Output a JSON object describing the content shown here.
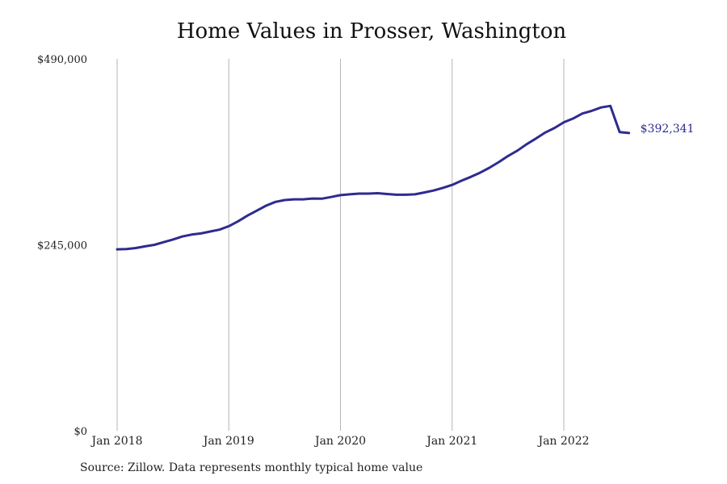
{
  "chart_data": {
    "type": "line",
    "title": "Home Values in Prosser, Washington",
    "source": "Source: Zillow. Data represents monthly typical home value",
    "color": "#2e2b8f",
    "ylim": [
      0,
      490000
    ],
    "y_ticks": [
      {
        "value": 0,
        "label": "$0"
      },
      {
        "value": 245000,
        "label": "$245,000"
      },
      {
        "value": 490000,
        "label": "$490,000"
      }
    ],
    "x_ticks": [
      {
        "value": "2018-01",
        "label": "Jan 2018"
      },
      {
        "value": "2019-01",
        "label": "Jan 2019"
      },
      {
        "value": "2020-01",
        "label": "Jan 2020"
      },
      {
        "value": "2021-01",
        "label": "Jan 2021"
      },
      {
        "value": "2022-01",
        "label": "Jan 2022"
      }
    ],
    "end_label": "$392,341",
    "series": [
      {
        "x": [
          "2018-01",
          "2018-02",
          "2018-03",
          "2018-04",
          "2018-05",
          "2018-06",
          "2018-07",
          "2018-08",
          "2018-09",
          "2018-10",
          "2018-11",
          "2018-12",
          "2019-01",
          "2019-02",
          "2019-03",
          "2019-04",
          "2019-05",
          "2019-06",
          "2019-07",
          "2019-08",
          "2019-09",
          "2019-10",
          "2019-11",
          "2019-12",
          "2020-01",
          "2020-02",
          "2020-03",
          "2020-04",
          "2020-05",
          "2020-06",
          "2020-07",
          "2020-08",
          "2020-09",
          "2020-10",
          "2020-11",
          "2020-12",
          "2021-01",
          "2021-02",
          "2021-03",
          "2021-04",
          "2021-05",
          "2021-06",
          "2021-07",
          "2021-08",
          "2021-09",
          "2021-10",
          "2021-11",
          "2021-12",
          "2022-01",
          "2022-02",
          "2022-03",
          "2022-04",
          "2022-05",
          "2022-06",
          "2022-07",
          "2022-08"
        ],
        "values": [
          239000,
          239500,
          240800,
          243000,
          245000,
          248500,
          252000,
          256000,
          258500,
          260000,
          262500,
          265000,
          269500,
          276000,
          283500,
          290000,
          296500,
          301500,
          304000,
          305000,
          305000,
          306000,
          305800,
          308000,
          310500,
          311500,
          312500,
          312500,
          313000,
          312000,
          311000,
          311000,
          311500,
          314000,
          316500,
          320000,
          324000,
          329500,
          334500,
          340000,
          346500,
          354000,
          362000,
          369000,
          377500,
          385000,
          393000,
          399000,
          406500,
          411500,
          418000,
          421500,
          426000,
          428000,
          392341,
          392341
        ],
        "values_note": ""
      }
    ]
  }
}
